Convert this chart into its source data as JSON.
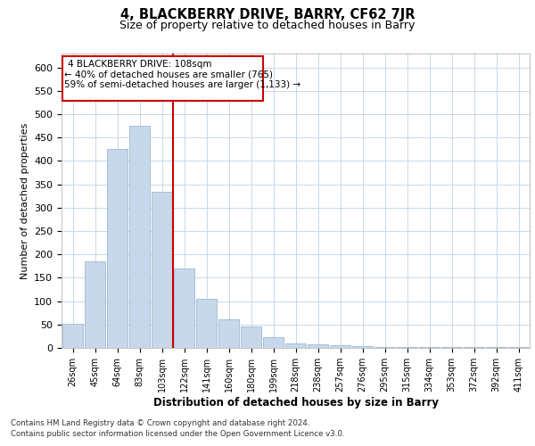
{
  "title": "4, BLACKBERRY DRIVE, BARRY, CF62 7JR",
  "subtitle": "Size of property relative to detached houses in Barry",
  "xlabel": "Distribution of detached houses by size in Barry",
  "ylabel": "Number of detached properties",
  "annotation_line1": "4 BLACKBERRY DRIVE: 108sqm",
  "annotation_line2": "← 40% of detached houses are smaller (765)",
  "annotation_line3": "59% of semi-detached houses are larger (1,133) →",
  "footer_line1": "Contains HM Land Registry data © Crown copyright and database right 2024.",
  "footer_line2": "Contains public sector information licensed under the Open Government Licence v3.0.",
  "categories": [
    "26sqm",
    "45sqm",
    "64sqm",
    "83sqm",
    "103sqm",
    "122sqm",
    "141sqm",
    "160sqm",
    "180sqm",
    "199sqm",
    "218sqm",
    "238sqm",
    "257sqm",
    "276sqm",
    "295sqm",
    "315sqm",
    "334sqm",
    "353sqm",
    "372sqm",
    "392sqm",
    "411sqm"
  ],
  "values": [
    52,
    186,
    425,
    475,
    335,
    170,
    105,
    62,
    45,
    22,
    10,
    8,
    5,
    3,
    2,
    1,
    1,
    1,
    1,
    1,
    1
  ],
  "bar_color": "#c8d8eb",
  "bar_edge_color": "#8ab0cc",
  "vline_color": "#cc0000",
  "box_color": "#cc0000",
  "ylim_max": 630,
  "yticks": [
    0,
    50,
    100,
    150,
    200,
    250,
    300,
    350,
    400,
    450,
    500,
    550,
    600
  ],
  "background_color": "#ffffff",
  "grid_color": "#c8d8e8"
}
